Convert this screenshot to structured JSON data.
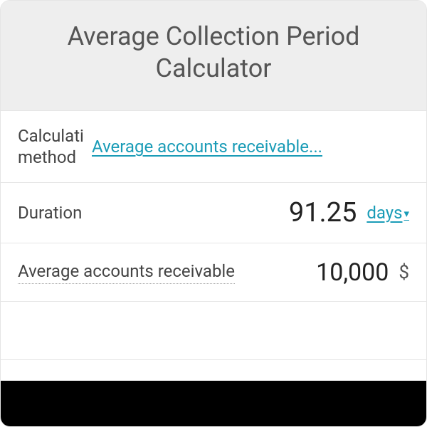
{
  "title": "Average Collection Period Calculator",
  "rows": {
    "method": {
      "label": "Calculation method",
      "value_link": "Average accounts receivable..."
    },
    "duration": {
      "label": "Duration",
      "value": "91.25",
      "unit": "days",
      "unit_caret": "▾"
    },
    "avg_ar": {
      "label": "Average accounts receivable",
      "value": "10,000",
      "currency": "$"
    }
  },
  "colors": {
    "header_bg": "#eeeeee",
    "border": "#e5e5e5",
    "title_text": "#555555",
    "label_text": "#444444",
    "link": "#1a9cb7",
    "value_text": "#222222",
    "currency_text": "#555555",
    "dotted": "#aaaaaa",
    "overlay": "#000000"
  },
  "typography": {
    "title_fontsize": 36,
    "label_fontsize": 24,
    "link_fontsize": 24,
    "value_fontsize_large": 38,
    "value_fontsize": 34,
    "currency_fontsize": 26
  }
}
